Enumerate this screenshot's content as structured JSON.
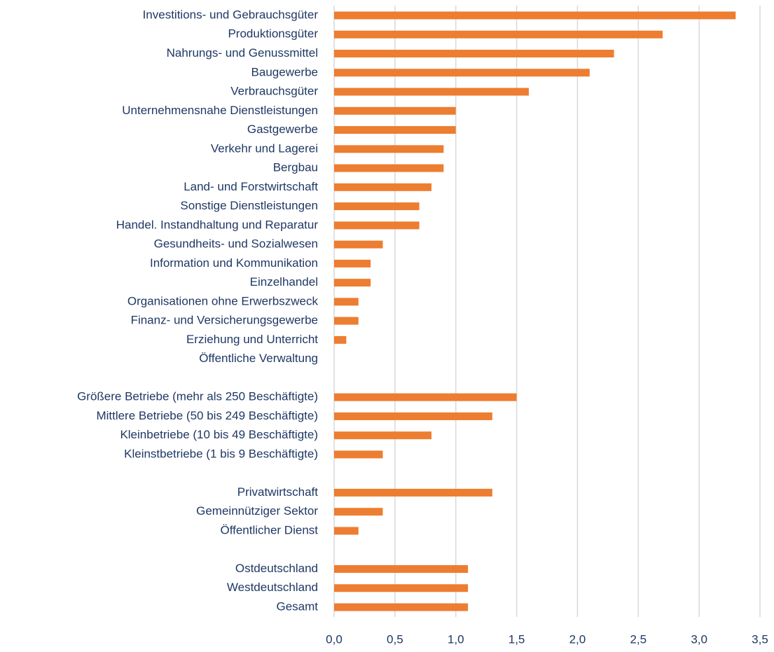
{
  "chart_data": {
    "type": "bar",
    "orientation": "horizontal",
    "color": "#ed7d31",
    "grid": true,
    "categories": [
      "Investitions- und Gebrauchsgüter",
      "Produktionsgüter",
      "Nahrungs- und Genussmittel",
      "Baugewerbe",
      "Verbrauchsgüter",
      "Unternehmensnahe Dienstleistungen",
      "Gastgewerbe",
      "Verkehr und Lagerei",
      "Bergbau",
      "Land- und Forstwirtschaft",
      "Sonstige Dienstleistungen",
      "Handel. Instandhaltung und Reparatur",
      "Gesundheits- und Sozialwesen",
      "Information und Kommunikation",
      "Einzelhandel",
      "Organisationen ohne Erwerbszweck",
      "Finanz- und Versicherungsgewerbe",
      "Erziehung und Unterricht",
      "Öffentliche Verwaltung",
      null,
      "Größere Betriebe (mehr als 250 Beschäftigte)",
      "Mittlere Betriebe (50 bis 249 Beschäftigte)",
      "Kleinbetriebe (10 bis 49 Beschäftigte)",
      "Kleinstbetriebe (1 bis 9 Beschäftigte)",
      null,
      "Privatwirtschaft",
      "Gemeinnütziger Sektor",
      "Öffentlicher Dienst",
      null,
      "Ostdeutschland",
      "Westdeutschland",
      "Gesamt"
    ],
    "values": [
      3.3,
      2.7,
      2.3,
      2.1,
      1.6,
      1.0,
      1.0,
      0.9,
      0.9,
      0.8,
      0.7,
      0.7,
      0.4,
      0.3,
      0.3,
      0.2,
      0.2,
      0.1,
      0,
      null,
      1.5,
      1.3,
      0.8,
      0.4,
      null,
      1.3,
      0.4,
      0.2,
      null,
      1.1,
      1.1,
      1.1
    ],
    "xlim": [
      0,
      3.5
    ],
    "xticks": [
      {
        "value": 0,
        "label": "0,0"
      },
      {
        "value": 0.5,
        "label": "0,5"
      },
      {
        "value": 1,
        "label": "1,0"
      },
      {
        "value": 1.5,
        "label": "1,5"
      },
      {
        "value": 2,
        "label": "2,0"
      },
      {
        "value": 2.5,
        "label": "2,5"
      },
      {
        "value": 3,
        "label": "3,0"
      },
      {
        "value": 3.5,
        "label": "3,5"
      }
    ]
  }
}
